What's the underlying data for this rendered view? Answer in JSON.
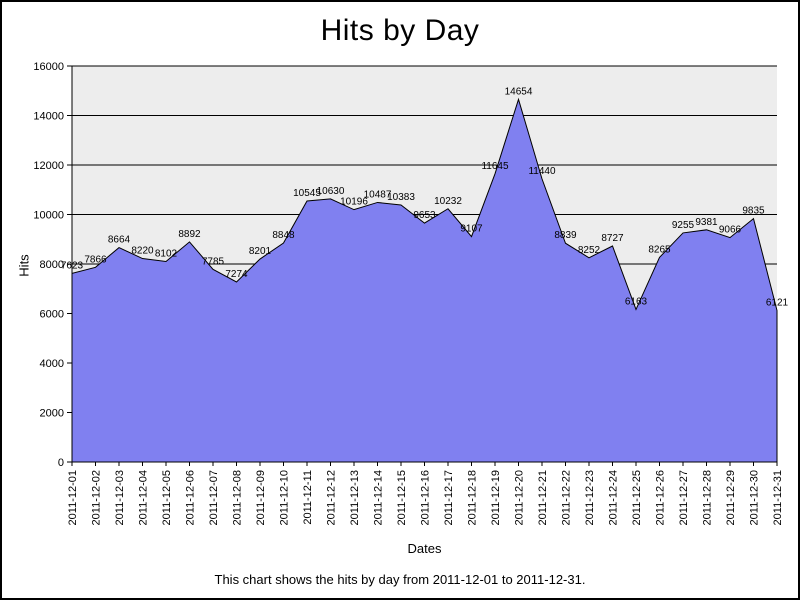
{
  "chart_data": {
    "type": "area",
    "title": "Hits by Day",
    "xlabel": "Dates",
    "ylabel": "Hits",
    "caption": "This chart shows the hits by day from 2011-12-01 to 2011-12-31.",
    "x": [
      "2011-12-01",
      "2011-12-02",
      "2011-12-03",
      "2011-12-04",
      "2011-12-05",
      "2011-12-06",
      "2011-12-07",
      "2011-12-08",
      "2011-12-09",
      "2011-12-10",
      "2011-12-11",
      "2011-12-12",
      "2011-12-13",
      "2011-12-14",
      "2011-12-15",
      "2011-12-16",
      "2011-12-17",
      "2011-12-18",
      "2011-12-19",
      "2011-12-20",
      "2011-12-21",
      "2011-12-22",
      "2011-12-23",
      "2011-12-24",
      "2011-12-25",
      "2011-12-26",
      "2011-12-27",
      "2011-12-28",
      "2011-12-29",
      "2011-12-30",
      "2011-12-31"
    ],
    "values": [
      7623,
      7866,
      8664,
      8220,
      8102,
      8892,
      7785,
      7274,
      8201,
      8848,
      10545,
      10630,
      10196,
      10487,
      10383,
      9653,
      10232,
      9107,
      11645,
      14654,
      11440,
      8839,
      8252,
      8727,
      6163,
      8265,
      9255,
      9381,
      9066,
      9835,
      6121
    ],
    "ylim": [
      0,
      16000
    ],
    "ytick_step": 2000,
    "grid": true,
    "point_labels": true,
    "legend": "none",
    "colors": {
      "area_fill": "#8080f0",
      "area_stroke": "#000000",
      "plot_background": "#ededed",
      "gridline": "#000000",
      "axis": "#000000",
      "text": "#000000"
    }
  }
}
